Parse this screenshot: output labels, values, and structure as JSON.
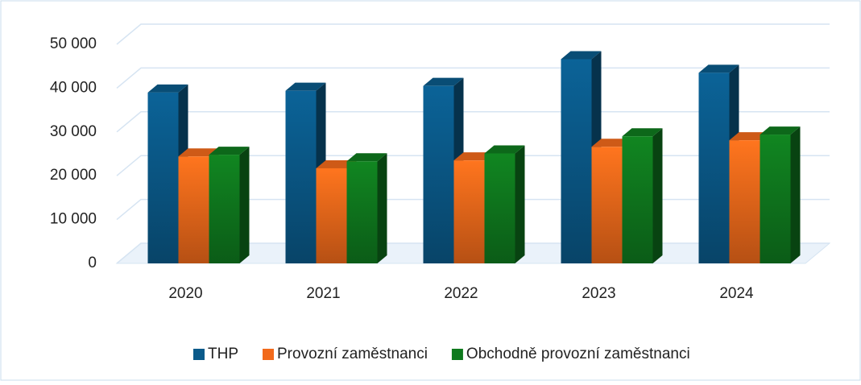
{
  "chart_data": {
    "type": "bar3d",
    "categories": [
      "2020",
      "2021",
      "2022",
      "2023",
      "2024"
    ],
    "series": [
      {
        "name": "THP",
        "color": "#0a5a8a",
        "values": [
          39000,
          39400,
          40500,
          46600,
          43500
        ]
      },
      {
        "name": "Provozní zaměstnanci",
        "color": "#f26a1b",
        "values": [
          24400,
          21700,
          23500,
          26600,
          28100
        ]
      },
      {
        "name": "Obchodně provozní zaměstnanci",
        "color": "#0f7a1e",
        "values": [
          24800,
          23300,
          25100,
          29000,
          29400
        ]
      }
    ],
    "ylim": [
      0,
      50000
    ],
    "yticks": [
      {
        "value": 0,
        "label": "0"
      },
      {
        "value": 10000,
        "label": "10 000"
      },
      {
        "value": 20000,
        "label": "20 000"
      },
      {
        "value": 30000,
        "label": "30 000"
      },
      {
        "value": 40000,
        "label": "40 000"
      },
      {
        "value": 50000,
        "label": "50 000"
      }
    ],
    "grid": true,
    "legend": "bottom"
  }
}
